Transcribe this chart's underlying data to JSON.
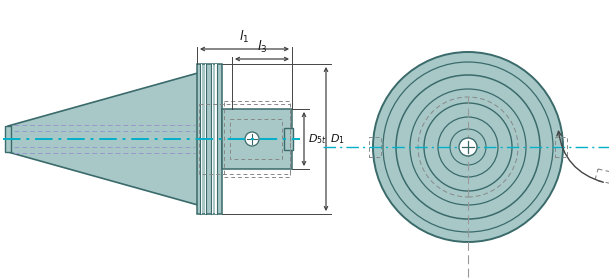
{
  "bg_color": "#ffffff",
  "tool_color": "#a8c8c8",
  "tool_edge_color": "#3a6a6a",
  "center_line_color": "#00b0c8",
  "dim_line_color": "#444444",
  "dashed_color": "#888888",
  "label_color": "#111111",
  "insert_color": "#d4a017",
  "fig_width": 6.09,
  "fig_height": 2.79,
  "dpi": 100
}
